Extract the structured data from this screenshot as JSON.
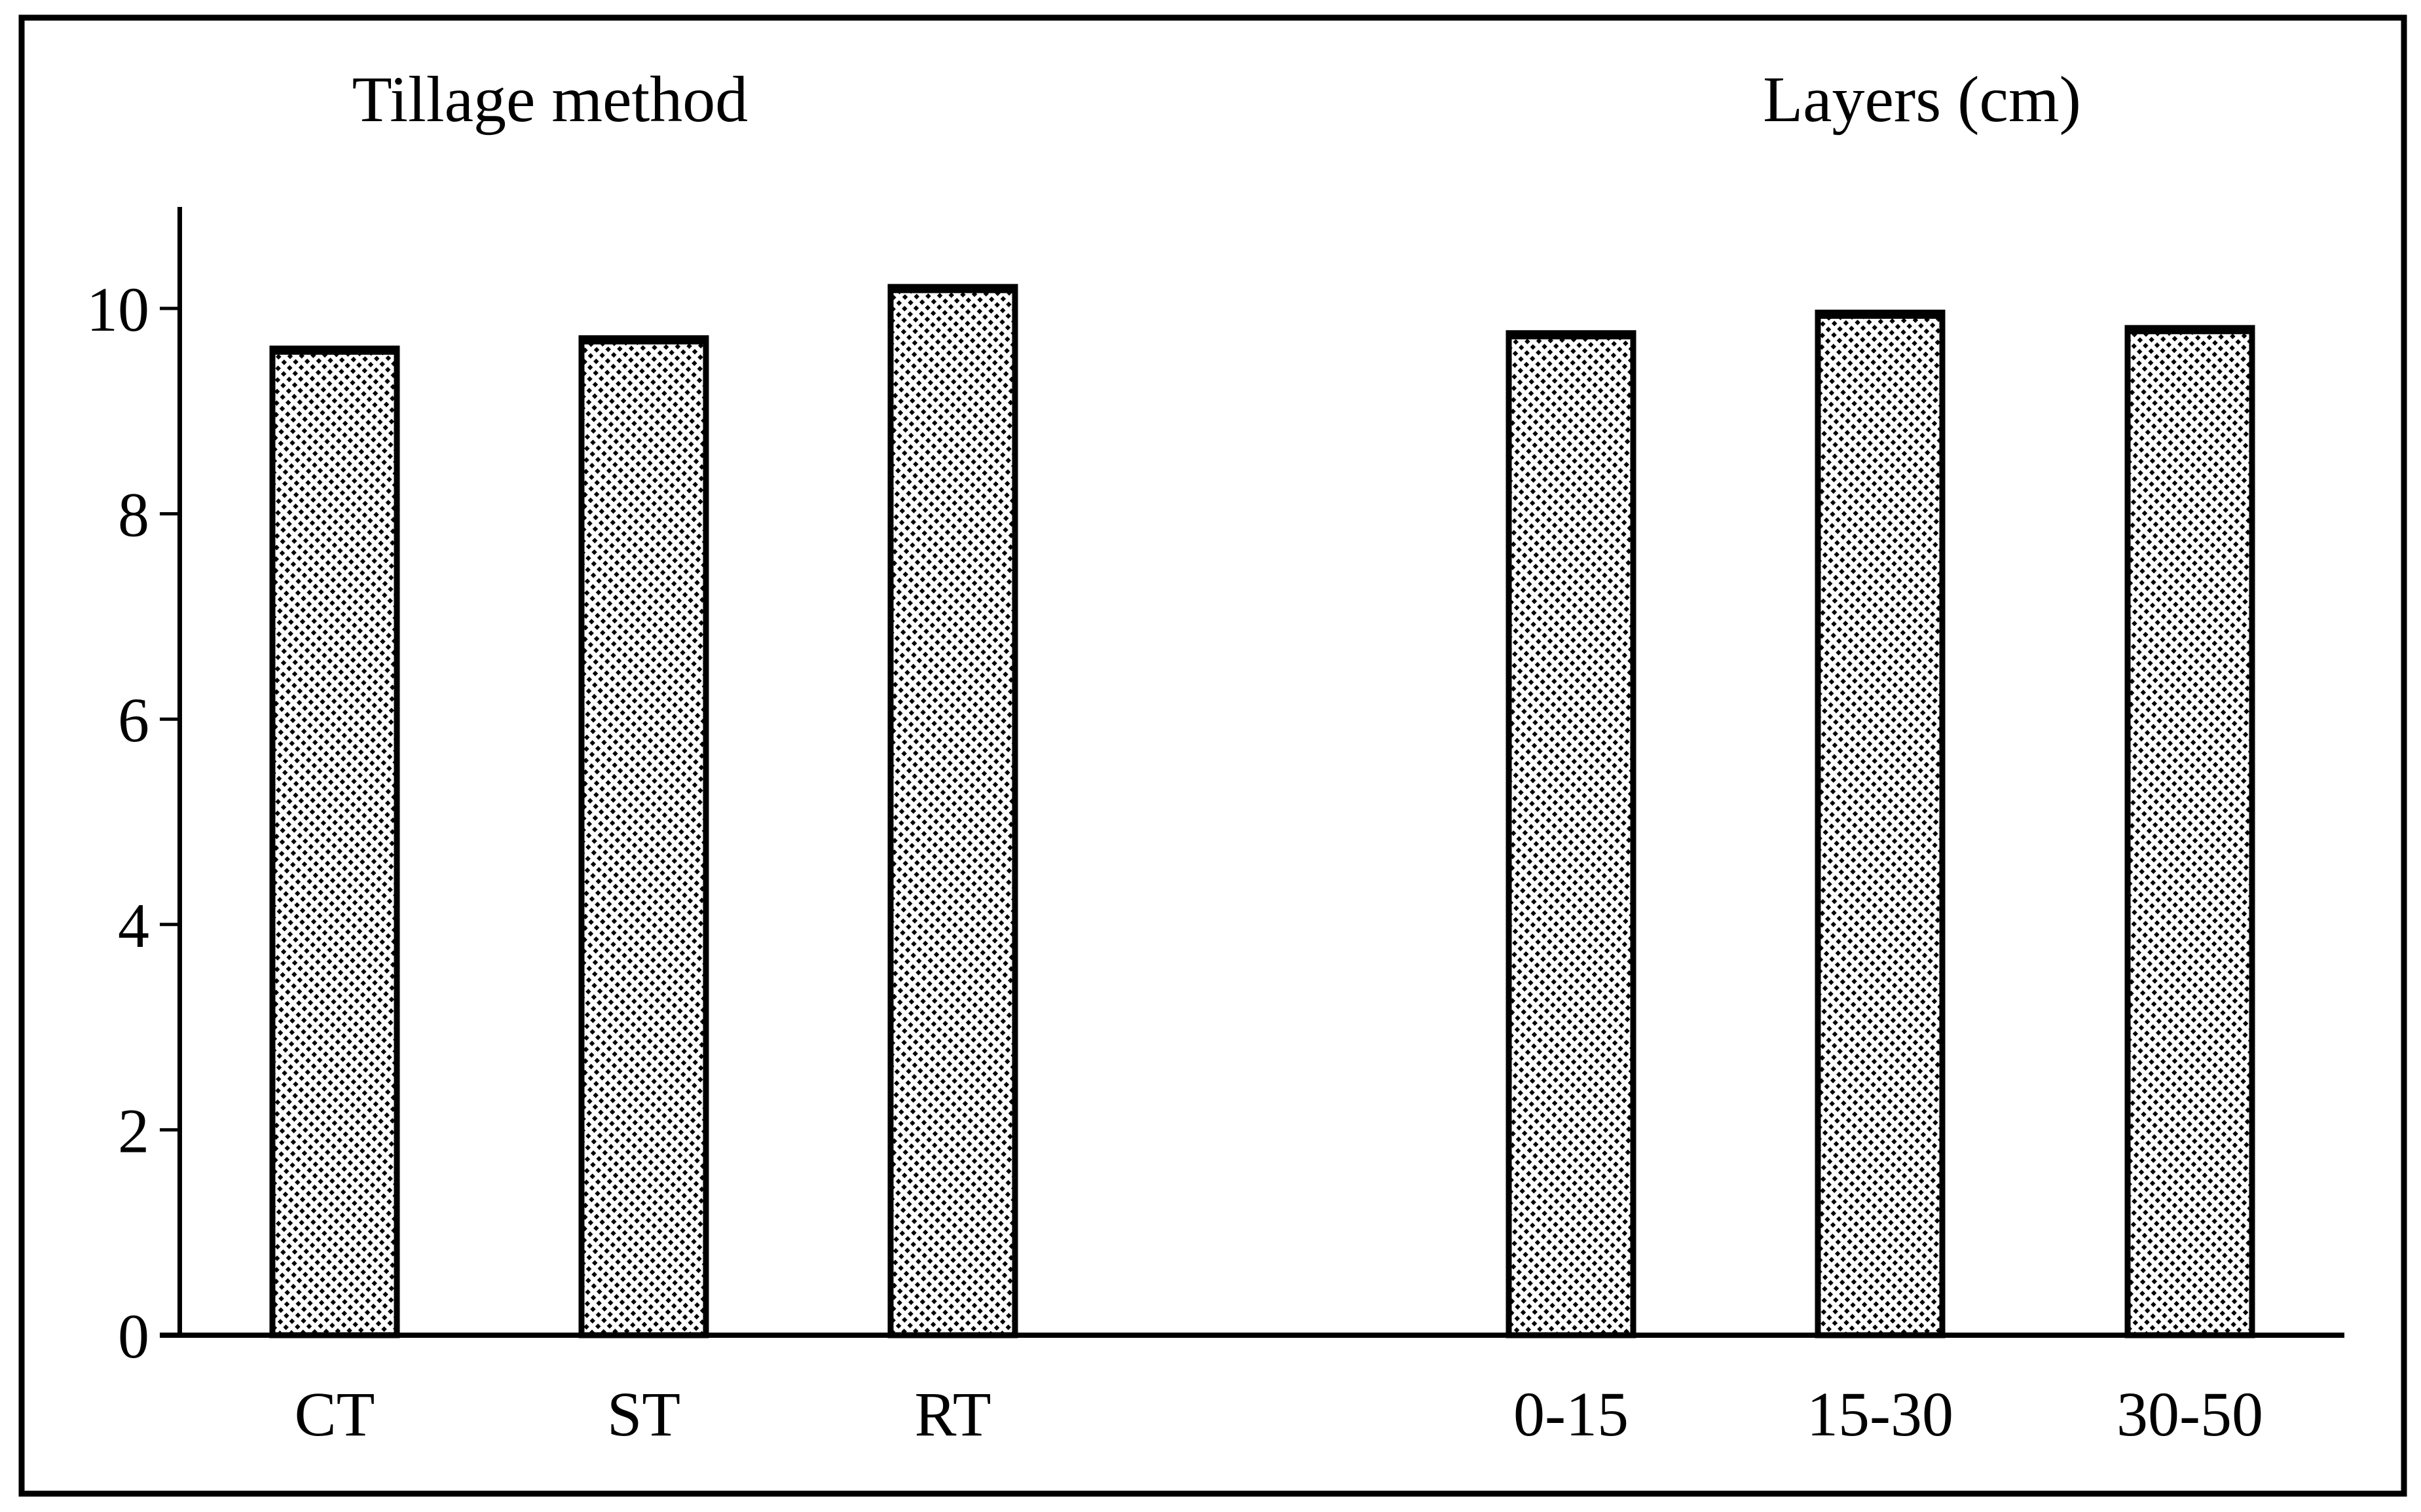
{
  "chart_data": {
    "type": "bar",
    "title": "",
    "xlabel": "",
    "ylabel": "",
    "ylim": [
      0,
      11
    ],
    "yticks": [
      0,
      2,
      4,
      6,
      8,
      10
    ],
    "grid": false,
    "legend": null,
    "bar_style": "black-dashed-diagonal-hatch-on-white",
    "groups": [
      {
        "title": "Tillage method",
        "categories": [
          "CT",
          "ST",
          "RT"
        ],
        "values": [
          9.6,
          9.7,
          10.2
        ]
      },
      {
        "title": "Layers (cm)",
        "categories": [
          "0-15",
          "15-30",
          "30-50"
        ],
        "values": [
          9.75,
          9.95,
          9.8
        ]
      }
    ]
  },
  "colors": {
    "ink": "#000000",
    "background": "#ffffff"
  }
}
